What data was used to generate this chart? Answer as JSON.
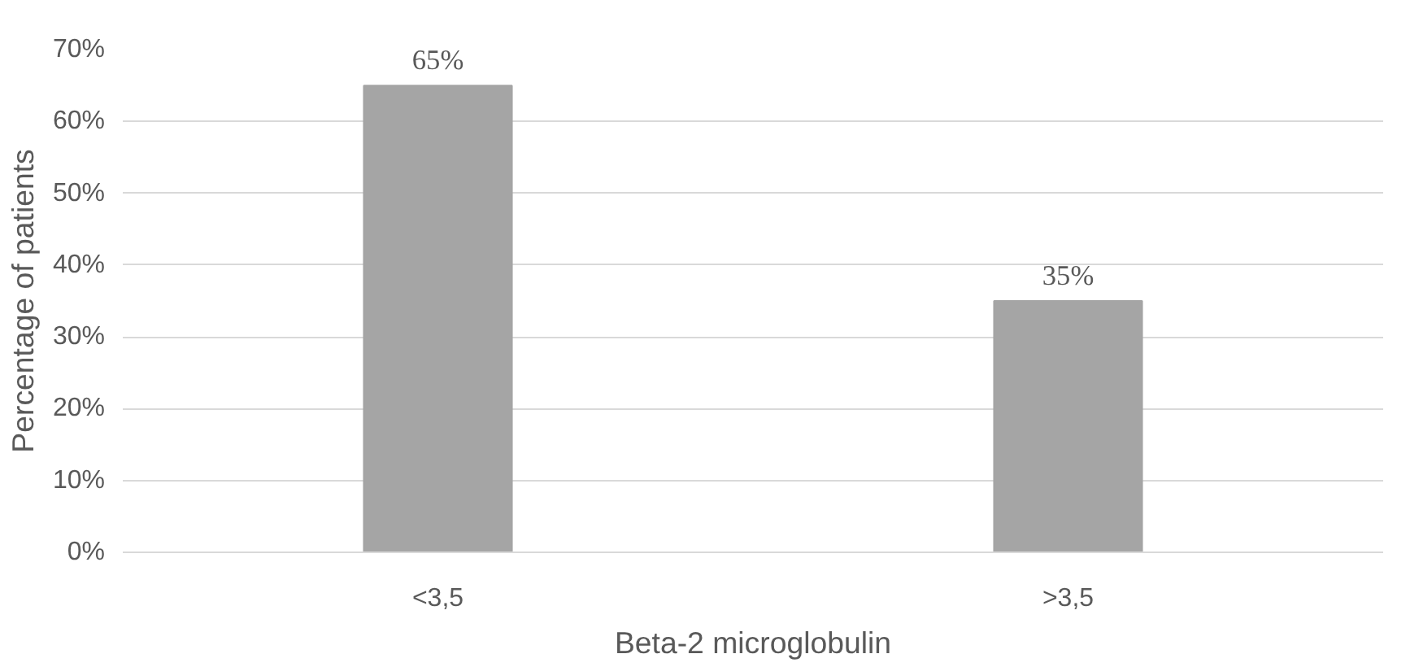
{
  "chart_data": {
    "type": "bar",
    "xlabel": "Beta-2 microglobulin",
    "ylabel": "Percentage of patients",
    "categories": [
      "<3,5",
      ">3,5"
    ],
    "values": [
      65,
      35
    ],
    "color": "#a5a5a5",
    "value_labels": [
      "65%",
      "35%"
    ],
    "ylim": [
      0,
      70
    ],
    "yticks": [
      {
        "value": 0,
        "label": "0%"
      },
      {
        "value": 10,
        "label": "10%"
      },
      {
        "value": 20,
        "label": "20%"
      },
      {
        "value": 30,
        "label": "30%"
      },
      {
        "value": 40,
        "label": "40%"
      },
      {
        "value": 50,
        "label": "50%"
      },
      {
        "value": 60,
        "label": "60%"
      },
      {
        "value": 70,
        "label": "70%"
      }
    ],
    "grid": "y"
  }
}
